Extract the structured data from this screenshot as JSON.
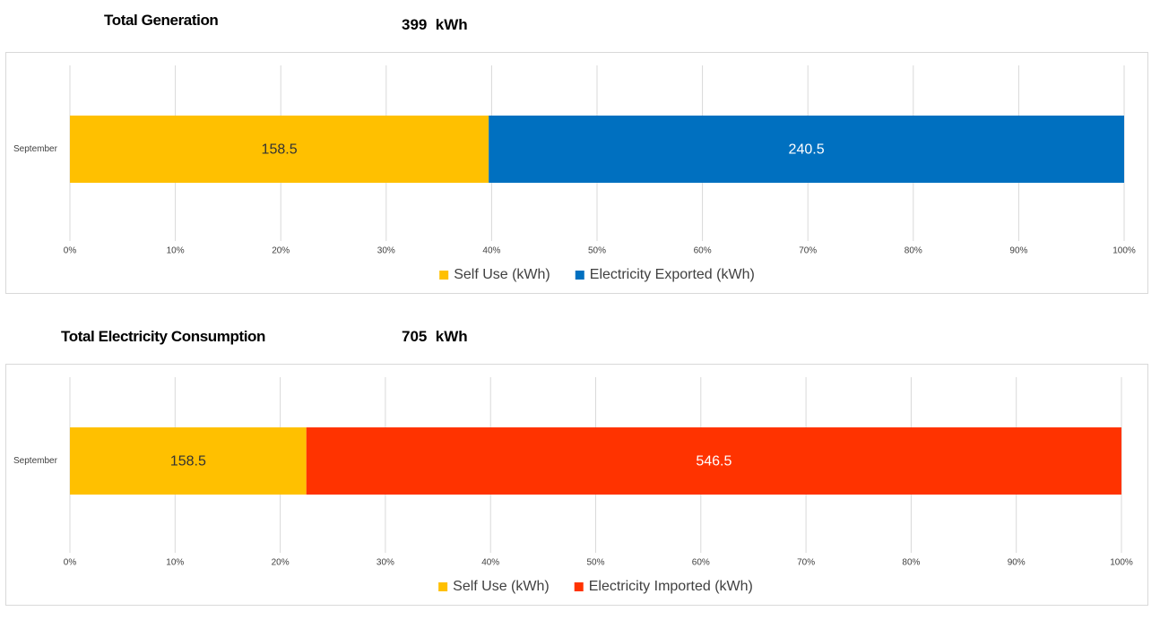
{
  "sections": [
    {
      "title": "Total Generation",
      "total": "399  kWh"
    },
    {
      "title": "Total Electricity Consumption",
      "total": "705  kWh"
    }
  ],
  "chart_data": [
    {
      "type": "bar",
      "orientation": "horizontal",
      "stacking": "percent",
      "categories": [
        "September"
      ],
      "series": [
        {
          "name": "Self Use (kWh)",
          "values": [
            158.5
          ],
          "labels": [
            "158.5"
          ],
          "color": "#FFC000",
          "label_color": "#333333"
        },
        {
          "name": "Electricity Exported (kWh)",
          "values": [
            240.5
          ],
          "labels": [
            "240.5"
          ],
          "color": "#0070C0",
          "label_color": "#FFFFFF"
        }
      ],
      "x_ticks": [
        "0%",
        "10%",
        "20%",
        "30%",
        "40%",
        "50%",
        "60%",
        "70%",
        "80%",
        "90%",
        "100%"
      ],
      "xlim": [
        0,
        100
      ],
      "grid": true,
      "legend": "bottom"
    },
    {
      "type": "bar",
      "orientation": "horizontal",
      "stacking": "percent",
      "categories": [
        "September"
      ],
      "series": [
        {
          "name": "Self Use (kWh)",
          "values": [
            158.5
          ],
          "labels": [
            "158.5"
          ],
          "color": "#FFC000",
          "label_color": "#333333"
        },
        {
          "name": "Electricity Imported (kWh)",
          "values": [
            546.5
          ],
          "labels": [
            "546.5"
          ],
          "color": "#FF3300",
          "label_color": "#FFFFFF"
        }
      ],
      "x_ticks": [
        "0%",
        "10%",
        "20%",
        "30%",
        "40%",
        "50%",
        "60%",
        "70%",
        "80%",
        "90%",
        "100%"
      ],
      "xlim": [
        0,
        100
      ],
      "grid": true,
      "legend": "bottom"
    }
  ]
}
